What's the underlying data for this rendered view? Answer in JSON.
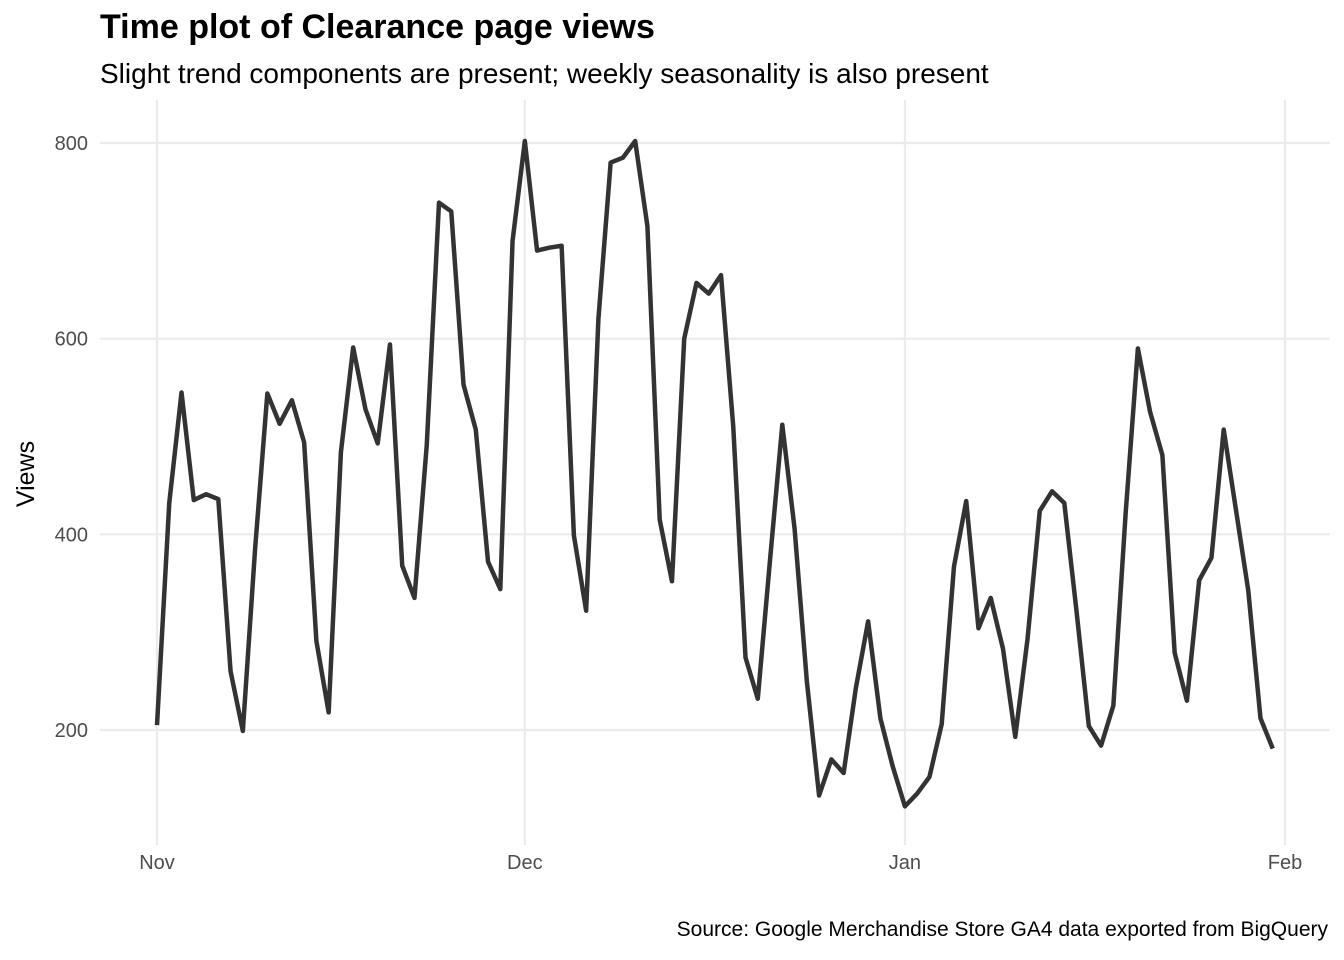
{
  "chart_data": {
    "type": "line",
    "title": "Time plot of Clearance page views",
    "subtitle": "Slight trend components are present; weekly seasonality is also present",
    "caption": "Source: Google Merchandise Store GA4 data exported from BigQuery",
    "xlabel": "",
    "ylabel": "Views",
    "x_start_date": "2020-11-01",
    "x_ticks": [
      {
        "label": "Nov",
        "day": 0
      },
      {
        "label": "Dec",
        "day": 30
      },
      {
        "label": "Jan",
        "day": 61
      },
      {
        "label": "Feb",
        "day": 92
      }
    ],
    "xlim": [
      0,
      92
    ],
    "y_ticks": [
      200,
      400,
      600,
      800
    ],
    "ylim": [
      120,
      800
    ],
    "grid": true,
    "legend": "none",
    "color": "#333333",
    "values": [
      205,
      432,
      545,
      435,
      441,
      436,
      260,
      199,
      385,
      544,
      513,
      537,
      494,
      291,
      218,
      484,
      591,
      528,
      493,
      594,
      368,
      335,
      491,
      739,
      730,
      553,
      507,
      372,
      344,
      700,
      802,
      690,
      693,
      695,
      399,
      322,
      620,
      780,
      785,
      802,
      715,
      415,
      352,
      600,
      657,
      646,
      665,
      510,
      274,
      232,
      374,
      512,
      406,
      250,
      133,
      170,
      156,
      243,
      311,
      212,
      163,
      122,
      135,
      152,
      206,
      367,
      434,
      304,
      335,
      283,
      193,
      293,
      424,
      444,
      432,
      321,
      204,
      184,
      225,
      421,
      590,
      525,
      481,
      279,
      230,
      353,
      376,
      507,
      425,
      343,
      212,
      181
    ]
  }
}
